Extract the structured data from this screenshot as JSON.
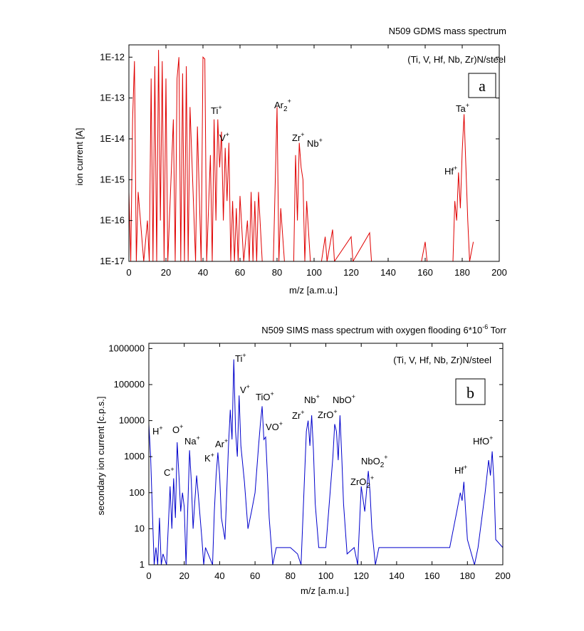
{
  "chart_data": [
    {
      "type": "line",
      "log_y": true,
      "title": {
        "text": "N509 GDMS mass spectrum"
      },
      "annotation": "(Ti, V, Hf, Nb, Zr)N/steel",
      "panel_label": "a",
      "x_label": "m/z [a.m.u.]",
      "y_label": "ion current [A]",
      "xlim": [
        0,
        200
      ],
      "xticks": [
        0,
        20,
        40,
        60,
        80,
        100,
        120,
        140,
        160,
        180,
        200
      ],
      "ylim": [
        1e-17,
        2e-12
      ],
      "yticks": [
        {
          "value": 1e-17,
          "label": "1E-17"
        },
        {
          "value": 1e-16,
          "label": "1E-16"
        },
        {
          "value": 1e-15,
          "label": "1E-15"
        },
        {
          "value": 1e-14,
          "label": "1E-14"
        },
        {
          "value": 1e-13,
          "label": "1E-13"
        },
        {
          "value": 1e-12,
          "label": "1E-12"
        }
      ],
      "peak_labels": [
        {
          "text": "Ti",
          "sup": "+"
        },
        {
          "text": "V",
          "sup": "+"
        },
        {
          "text": "Ar",
          "sub": "2",
          "sup": "+"
        },
        {
          "text": "Zr",
          "sup": "+"
        },
        {
          "text": "Nb",
          "sup": "+"
        },
        {
          "text": "Ta",
          "sup": "+"
        },
        {
          "text": "Hf",
          "sup": "+"
        }
      ],
      "series": [
        {
          "color": "#e00000",
          "x": [
            0,
            1,
            2,
            3,
            4,
            5,
            8,
            10,
            11,
            12,
            13,
            14,
            15,
            16,
            17,
            18,
            19,
            20,
            21,
            24,
            25,
            26,
            27,
            28,
            29,
            30,
            31,
            32,
            33,
            36,
            37,
            39,
            40,
            41,
            42,
            44,
            45,
            46,
            47,
            48,
            49,
            50,
            51,
            52,
            53,
            54,
            55,
            56,
            57,
            58,
            59,
            60,
            62,
            64,
            65,
            66,
            67,
            68,
            69,
            70,
            72,
            78,
            80,
            81,
            82,
            84,
            89,
            90,
            91,
            92,
            93,
            94,
            95,
            96,
            98,
            104,
            106,
            107,
            110,
            111,
            120,
            121,
            130,
            131,
            158,
            160,
            161,
            175,
            176,
            177,
            178,
            179,
            180,
            181,
            182,
            183,
            184,
            186
          ],
          "values": [
            5e-16,
            1e-17,
            3e-14,
            8e-13,
            1e-17,
            5e-16,
            1e-17,
            1e-16,
            1e-17,
            3e-13,
            1e-17,
            6e-13,
            1e-17,
            1.5e-12,
            1e-16,
            8e-13,
            1e-17,
            3e-13,
            1e-17,
            3e-14,
            1e-17,
            3e-13,
            1e-12,
            1e-17,
            4e-13,
            1e-17,
            6e-13,
            1e-17,
            6e-14,
            1e-17,
            2e-14,
            1e-17,
            1e-12,
            9e-13,
            1e-17,
            4e-15,
            1e-17,
            3e-14,
            1e-16,
            3e-14,
            2e-15,
            1.5e-14,
            1e-16,
            6e-15,
            3e-16,
            8e-15,
            1e-17,
            3e-16,
            1e-17,
            2e-16,
            1e-17,
            4e-16,
            1e-17,
            1e-16,
            1e-17,
            5e-16,
            1e-17,
            3e-16,
            1e-17,
            5e-16,
            1e-17,
            1e-17,
            6e-14,
            1e-17,
            2e-16,
            1e-17,
            1e-17,
            4e-15,
            1e-16,
            8e-15,
            2e-15,
            1e-15,
            1e-17,
            3e-16,
            1e-17,
            1e-17,
            4e-17,
            1e-17,
            6e-17,
            1e-17,
            4e-17,
            1e-17,
            5e-17,
            1e-17,
            1e-17,
            3e-17,
            1e-17,
            1e-17,
            3e-16,
            1e-16,
            1.5e-15,
            2e-16,
            5e-15,
            4e-14,
            2e-15,
            1e-16,
            1e-17,
            3e-17
          ]
        }
      ]
    },
    {
      "type": "line",
      "log_y": true,
      "title": {
        "text": "N509 SIMS mass spectrum with oxygen flooding 6*10",
        "sup": "-6",
        "tail": " Torr"
      },
      "annotation": "(Ti, V, Hf, Nb, Zr)N/steel",
      "panel_label": "b",
      "x_label": "m/z [a.m.u.]",
      "y_label": "secondary ion current [c.p.s.]",
      "xlim": [
        0,
        200
      ],
      "xticks": [
        0,
        20,
        40,
        60,
        80,
        100,
        120,
        140,
        160,
        180,
        200
      ],
      "ylim": [
        1,
        1400000
      ],
      "yticks": [
        1,
        10,
        100,
        1000,
        10000,
        100000,
        1000000
      ],
      "peak_labels": [
        {
          "text": "H",
          "sup": "+"
        },
        {
          "text": "C",
          "sup": "+"
        },
        {
          "text": "O",
          "sup": "+"
        },
        {
          "text": "Na",
          "sup": "+"
        },
        {
          "text": "K",
          "sup": "+"
        },
        {
          "text": "Ar",
          "sup": "+"
        },
        {
          "text": "Ti",
          "sup": "+"
        },
        {
          "text": "V",
          "sup": "+"
        },
        {
          "text": "TiO",
          "sup": "+"
        },
        {
          "text": "VO",
          "sup": "+"
        },
        {
          "text": "Nb",
          "sup": "+"
        },
        {
          "text": "Zr",
          "sup": "+"
        },
        {
          "text": "ZrO",
          "sup": "+"
        },
        {
          "text": "NbO",
          "sup": "+"
        },
        {
          "text": "NbO",
          "sub": "2",
          "sup": "+"
        },
        {
          "text": "ZrO",
          "sub": "2",
          "sup": "+"
        },
        {
          "text": "Hf",
          "sup": "+"
        },
        {
          "text": "HfO",
          "sup": "+"
        }
      ],
      "series": [
        {
          "color": "#0000cc",
          "x": [
            0,
            1,
            2,
            3,
            4,
            5,
            6,
            7,
            8,
            10,
            12,
            13,
            14,
            15,
            16,
            17,
            18,
            19,
            20,
            21,
            23,
            24,
            25,
            26,
            27,
            28,
            30,
            31,
            32,
            36,
            37,
            38,
            39,
            40,
            41,
            43,
            44,
            45,
            46,
            47,
            48,
            49,
            50,
            51,
            52,
            54,
            56,
            58,
            60,
            62,
            63,
            64,
            65,
            66,
            67,
            68,
            70,
            72,
            76,
            80,
            84,
            86,
            88,
            89,
            90,
            91,
            92,
            93,
            94,
            96,
            100,
            104,
            105,
            106,
            107,
            108,
            109,
            110,
            112,
            116,
            118,
            120,
            122,
            124,
            125,
            126,
            128,
            130,
            140,
            150,
            160,
            170,
            174,
            176,
            177,
            178,
            179,
            180,
            184,
            186,
            190,
            192,
            193,
            194,
            195,
            196,
            200
          ],
          "values": [
            8000,
            1000,
            30,
            1,
            3,
            1,
            20,
            1,
            2,
            1,
            150,
            10,
            250,
            20,
            2500,
            300,
            30,
            100,
            40,
            1,
            1500,
            200,
            10,
            60,
            300,
            80,
            5,
            1,
            3,
            1,
            30,
            300,
            1300,
            300,
            20,
            5,
            100,
            2000,
            20000,
            3000,
            500000,
            5000,
            1000,
            50000,
            2000,
            200,
            10,
            30,
            100,
            2000,
            8000,
            25000,
            3000,
            3500,
            300,
            20,
            1,
            3,
            3,
            3,
            2,
            1,
            300,
            5000,
            10000,
            2000,
            14000,
            1500,
            50,
            3,
            3,
            1000,
            8000,
            5000,
            800,
            14000,
            1000,
            50,
            2,
            3,
            1,
            150,
            30,
            400,
            100,
            10,
            1,
            3,
            3,
            3,
            3,
            3,
            30,
            100,
            60,
            200,
            30,
            5,
            1,
            3,
            100,
            800,
            300,
            1400,
            200,
            5,
            3
          ]
        }
      ]
    }
  ]
}
